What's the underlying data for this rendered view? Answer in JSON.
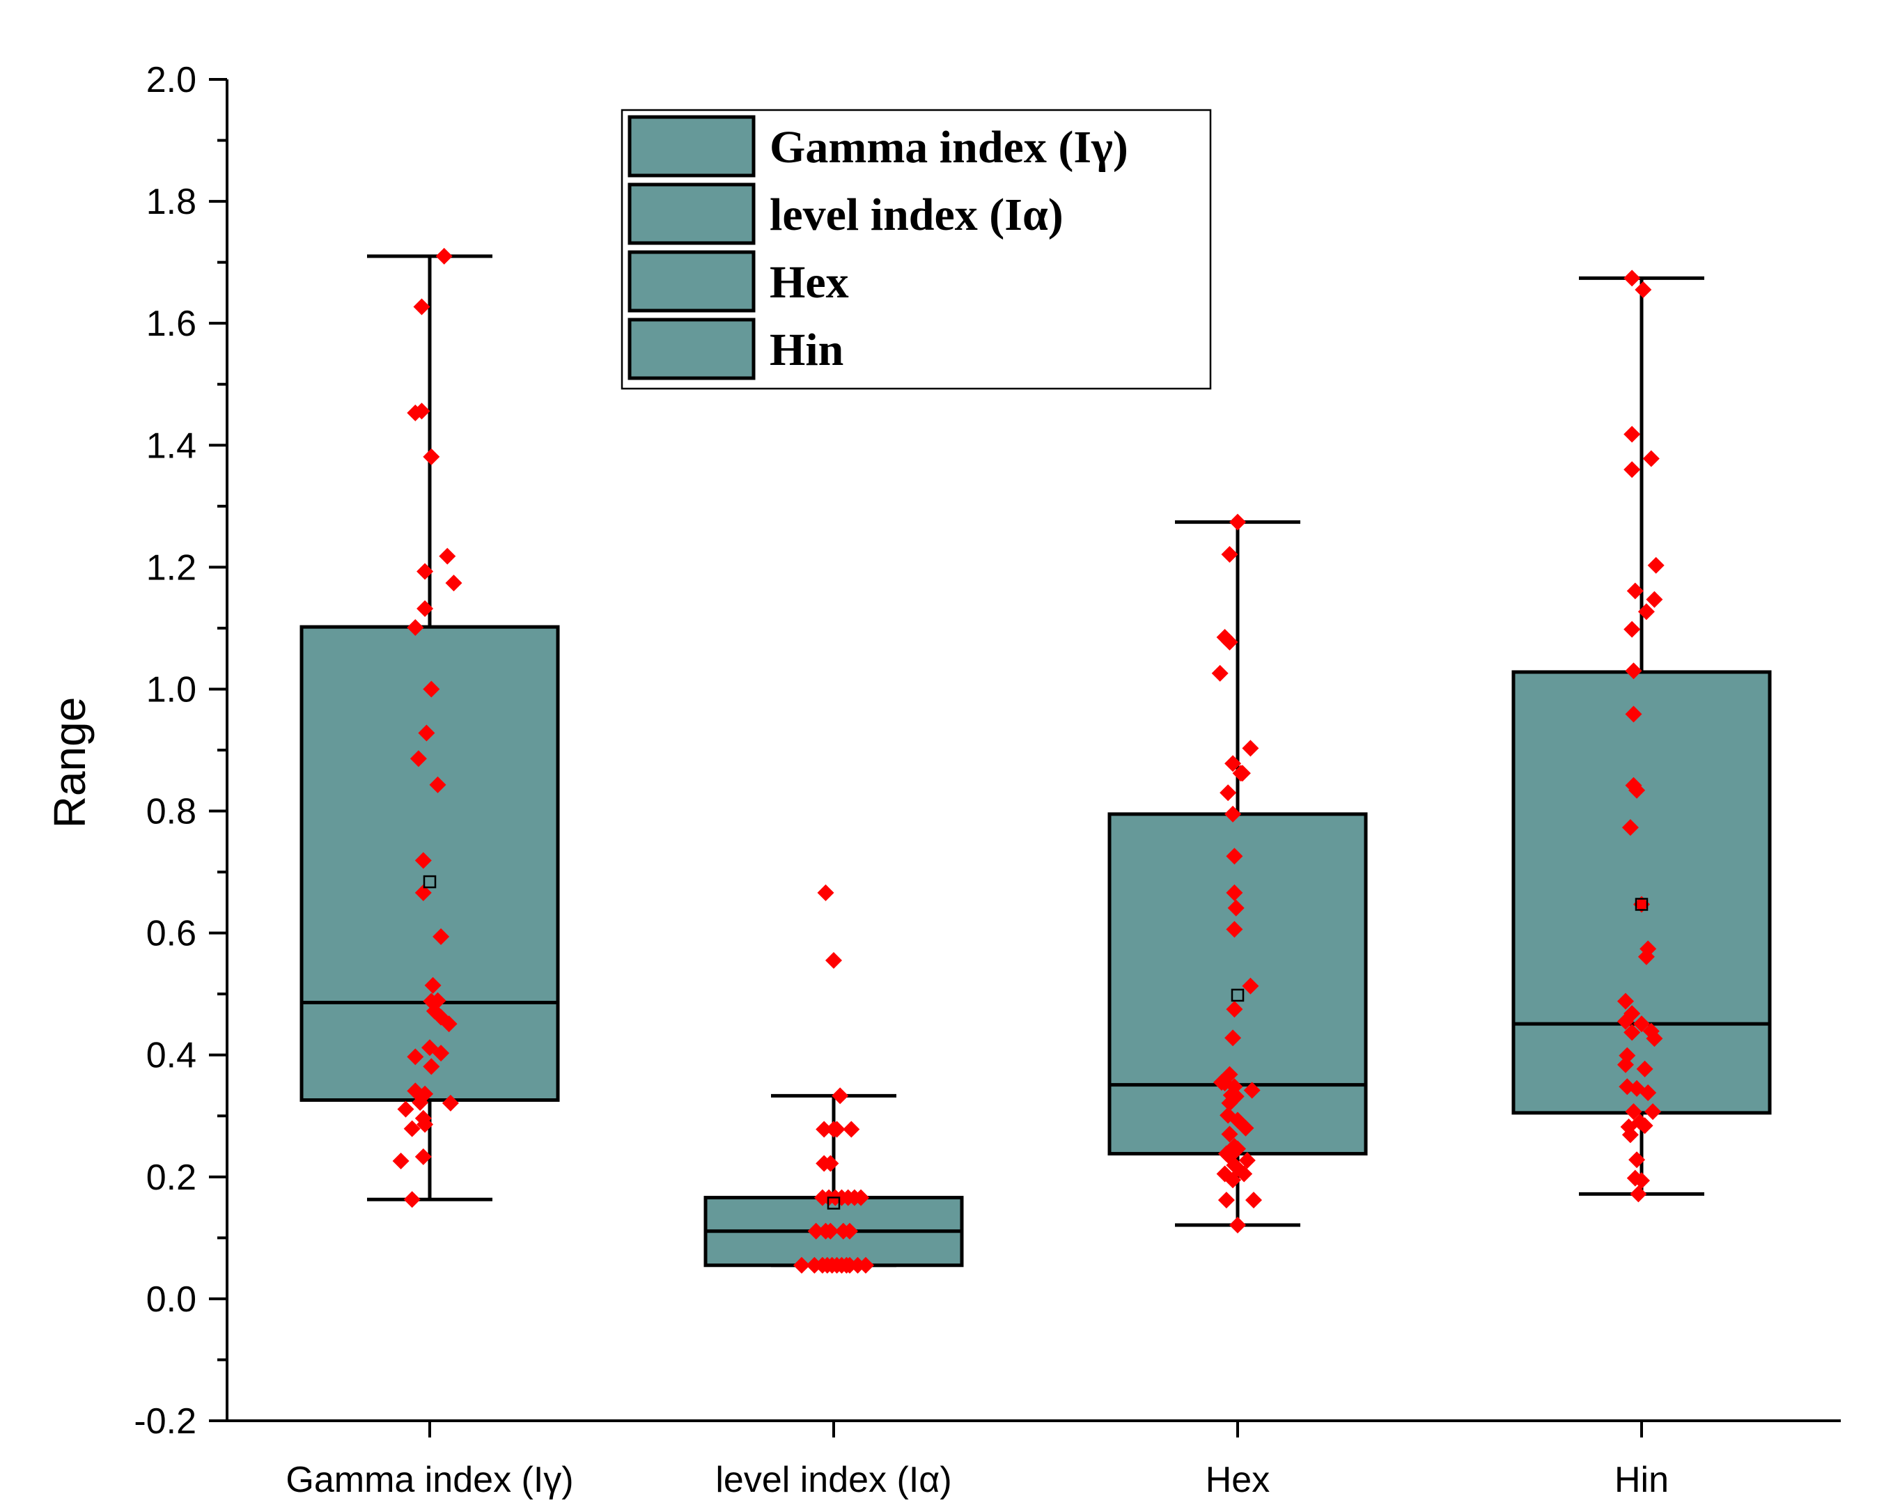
{
  "chart_data": {
    "type": "box",
    "title": "",
    "xlabel": "",
    "ylabel": "Range",
    "ylim": [
      -0.2,
      2.0
    ],
    "yticks": [
      "-0.2",
      "0.0",
      "0.2",
      "0.4",
      "0.6",
      "0.8",
      "1.0",
      "1.2",
      "1.4",
      "1.6",
      "1.8",
      "2.0"
    ],
    "box_color": "#669999",
    "point_color": "#ff0000",
    "legend_position": "top-center",
    "categories": [
      "Gamma index (Iγ)",
      "level index (Iα)",
      "Hex",
      "Hin"
    ],
    "legend": [
      "Gamma index (Iγ)",
      "level index (Iα)",
      "Hex",
      "Hin"
    ],
    "series": [
      {
        "name": "Gamma index (Iγ)",
        "whisker_low": 0.163,
        "q1": 0.326,
        "median": 0.486,
        "q3": 1.102,
        "whisker_high": 1.71,
        "mean": 0.684,
        "points": [
          [
            0.09,
            1.71
          ],
          [
            -0.05,
            1.627
          ],
          [
            -0.09,
            1.453
          ],
          [
            -0.05,
            1.456
          ],
          [
            0.01,
            1.381
          ],
          [
            0.11,
            1.218
          ],
          [
            -0.03,
            1.193
          ],
          [
            0.15,
            1.174
          ],
          [
            -0.03,
            1.132
          ],
          [
            -0.09,
            1.101
          ],
          [
            0.01,
            1.0
          ],
          [
            -0.02,
            0.928
          ],
          [
            -0.07,
            0.886
          ],
          [
            0.05,
            0.843
          ],
          [
            -0.04,
            0.719
          ],
          [
            -0.04,
            0.666
          ],
          [
            0.07,
            0.594
          ],
          [
            0.02,
            0.514
          ],
          [
            0.01,
            0.488
          ],
          [
            0.05,
            0.489
          ],
          [
            0.03,
            0.472
          ],
          [
            0.07,
            0.462
          ],
          [
            0.12,
            0.451
          ],
          [
            0.0,
            0.412
          ],
          [
            0.07,
            0.403
          ],
          [
            -0.09,
            0.397
          ],
          [
            0.01,
            0.381
          ],
          [
            0.13,
            0.321
          ],
          [
            -0.09,
            0.341
          ],
          [
            -0.03,
            0.336
          ],
          [
            -0.06,
            0.322
          ],
          [
            -0.15,
            0.311
          ],
          [
            -0.04,
            0.296
          ],
          [
            -0.03,
            0.286
          ],
          [
            -0.11,
            0.279
          ],
          [
            -0.04,
            0.233
          ],
          [
            -0.18,
            0.226
          ],
          [
            -0.11,
            0.163
          ]
        ]
      },
      {
        "name": "level index (Iα)",
        "whisker_low": 0.055,
        "q1": 0.055,
        "median": 0.111,
        "q3": 0.166,
        "whisker_high": 0.333,
        "mean": 0.157,
        "points": [
          [
            -0.05,
            0.666
          ],
          [
            0.0,
            0.555
          ],
          [
            0.04,
            0.333
          ],
          [
            -0.06,
            0.278
          ],
          [
            0.0,
            0.278
          ],
          [
            0.02,
            0.278
          ],
          [
            0.11,
            0.278
          ],
          [
            -0.06,
            0.222
          ],
          [
            -0.02,
            0.222
          ],
          [
            -0.07,
            0.166
          ],
          [
            -0.03,
            0.166
          ],
          [
            0.01,
            0.166
          ],
          [
            0.05,
            0.166
          ],
          [
            0.09,
            0.166
          ],
          [
            0.13,
            0.166
          ],
          [
            0.17,
            0.166
          ],
          [
            -0.11,
            0.111
          ],
          [
            -0.05,
            0.111
          ],
          [
            -0.02,
            0.111
          ],
          [
            0.06,
            0.111
          ],
          [
            0.1,
            0.111
          ],
          [
            -0.2,
            0.055
          ],
          [
            -0.12,
            0.055
          ],
          [
            -0.07,
            0.055
          ],
          [
            -0.04,
            0.055
          ],
          [
            -0.01,
            0.055
          ],
          [
            0.02,
            0.055
          ],
          [
            0.05,
            0.055
          ],
          [
            0.08,
            0.055
          ],
          [
            0.1,
            0.055
          ],
          [
            0.15,
            0.055
          ],
          [
            0.2,
            0.055
          ]
        ]
      },
      {
        "name": "Hex",
        "whisker_low": 0.121,
        "q1": 0.238,
        "median": 0.351,
        "q3": 0.795,
        "whisker_high": 1.274,
        "mean": 0.498,
        "points": [
          [
            0.0,
            1.274
          ],
          [
            -0.05,
            1.221
          ],
          [
            -0.08,
            1.085
          ],
          [
            -0.05,
            1.077
          ],
          [
            -0.11,
            1.026
          ],
          [
            0.08,
            0.903
          ],
          [
            -0.03,
            0.878
          ],
          [
            0.02,
            0.862
          ],
          [
            0.03,
            0.862
          ],
          [
            -0.06,
            0.83
          ],
          [
            -0.03,
            0.795
          ],
          [
            -0.02,
            0.726
          ],
          [
            -0.02,
            0.666
          ],
          [
            -0.01,
            0.641
          ],
          [
            -0.02,
            0.606
          ],
          [
            0.08,
            0.513
          ],
          [
            -0.02,
            0.475
          ],
          [
            -0.03,
            0.428
          ],
          [
            -0.05,
            0.368
          ],
          [
            -0.1,
            0.355
          ],
          [
            -0.08,
            0.354
          ],
          [
            -0.02,
            0.348
          ],
          [
            0.09,
            0.342
          ],
          [
            -0.04,
            0.334
          ],
          [
            -0.01,
            0.332
          ],
          [
            -0.05,
            0.321
          ],
          [
            -0.06,
            0.301
          ],
          [
            0.0,
            0.293
          ],
          [
            0.05,
            0.28
          ],
          [
            -0.05,
            0.27
          ],
          [
            -0.02,
            0.25
          ],
          [
            0.0,
            0.246
          ],
          [
            -0.07,
            0.238
          ],
          [
            -0.05,
            0.233
          ],
          [
            0.06,
            0.227
          ],
          [
            -0.02,
            0.219
          ],
          [
            0.0,
            0.214
          ],
          [
            -0.08,
            0.205
          ],
          [
            0.04,
            0.205
          ],
          [
            -0.03,
            0.195
          ],
          [
            -0.07,
            0.162
          ],
          [
            0.1,
            0.162
          ],
          [
            0.0,
            0.121
          ]
        ]
      },
      {
        "name": "Hin",
        "whisker_low": 0.172,
        "q1": 0.305,
        "median": 0.451,
        "q3": 1.028,
        "whisker_high": 1.674,
        "mean": 0.647,
        "points": [
          [
            -0.06,
            1.674
          ],
          [
            0.01,
            1.655
          ],
          [
            -0.06,
            1.418
          ],
          [
            -0.06,
            1.36
          ],
          [
            0.06,
            1.378
          ],
          [
            0.09,
            1.203
          ],
          [
            -0.04,
            1.161
          ],
          [
            0.08,
            1.147
          ],
          [
            0.03,
            1.127
          ],
          [
            -0.06,
            1.098
          ],
          [
            -0.05,
            1.03
          ],
          [
            -0.05,
            0.959
          ],
          [
            -0.05,
            0.842
          ],
          [
            -0.03,
            0.834
          ],
          [
            -0.07,
            0.773
          ],
          [
            0.0,
            0.647
          ],
          [
            0.04,
            0.574
          ],
          [
            0.03,
            0.561
          ],
          [
            -0.1,
            0.488
          ],
          [
            -0.06,
            0.468
          ],
          [
            -0.1,
            0.455
          ],
          [
            0.0,
            0.451
          ],
          [
            0.06,
            0.439
          ],
          [
            -0.06,
            0.437
          ],
          [
            0.08,
            0.427
          ],
          [
            -0.09,
            0.399
          ],
          [
            -0.1,
            0.384
          ],
          [
            0.02,
            0.377
          ],
          [
            -0.09,
            0.348
          ],
          [
            -0.03,
            0.345
          ],
          [
            0.04,
            0.338
          ],
          [
            -0.05,
            0.307
          ],
          [
            0.07,
            0.307
          ],
          [
            -0.01,
            0.29
          ],
          [
            0.02,
            0.284
          ],
          [
            -0.08,
            0.282
          ],
          [
            -0.07,
            0.269
          ],
          [
            -0.03,
            0.228
          ],
          [
            -0.04,
            0.198
          ],
          [
            0.0,
            0.194
          ],
          [
            -0.02,
            0.172
          ]
        ]
      }
    ]
  }
}
